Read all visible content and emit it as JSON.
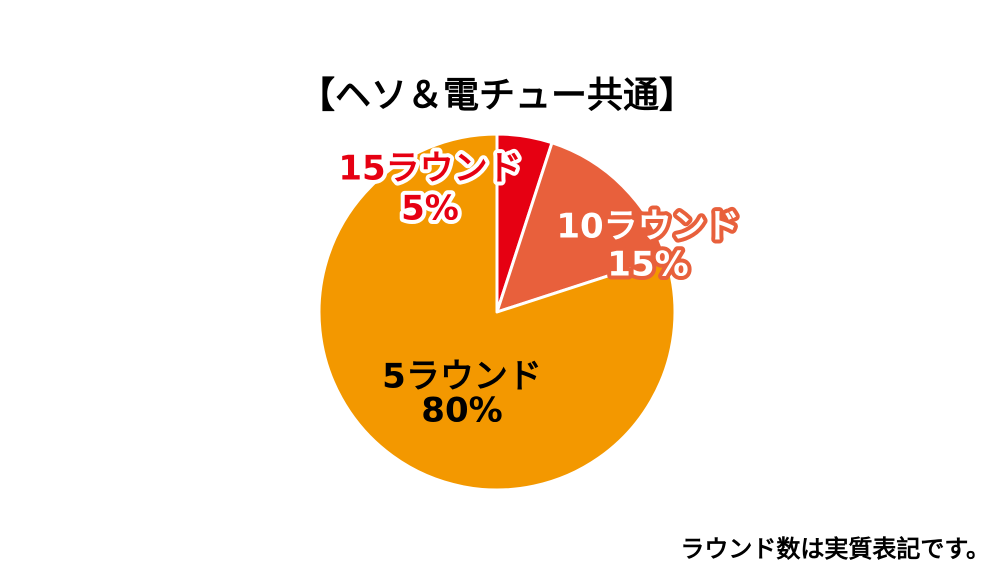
{
  "chart_data": {
    "type": "pie",
    "title": "【ヘソ＆電チュー共通】",
    "categories": [
      "15ラウンド",
      "10ラウンド",
      "5ラウンド"
    ],
    "values": [
      5,
      15,
      80
    ],
    "value_labels": [
      "5%",
      "15%",
      "80%"
    ],
    "colors": [
      "#e60012",
      "#e8603c",
      "#f39800"
    ],
    "note": "ラウンド数は実質表記です。"
  }
}
